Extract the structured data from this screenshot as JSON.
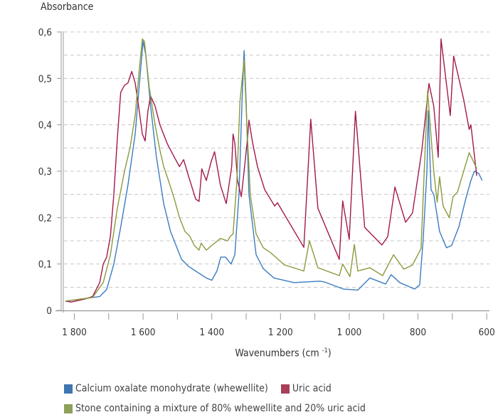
{
  "chart_data": {
    "type": "line",
    "title": "",
    "xlabel": "Wavenumbers (cm",
    "xlabel_sup": "-1",
    "xlabel_close": ")",
    "ylabel": "Absorbance",
    "xlim": [
      1830,
      600
    ],
    "x_reversed": true,
    "ylim": [
      0,
      0.6
    ],
    "grid": "horizontal dashed every 0.05",
    "x_ticks": [
      1800,
      1700,
      1600,
      1500,
      1400,
      1300,
      1200,
      1100,
      1000,
      900,
      800,
      700,
      600
    ],
    "x_tick_labels": [
      "1 800",
      "1 600",
      "1 400",
      "1 200",
      "1 000",
      "800",
      "600"
    ],
    "x_tick_label_values": [
      1800,
      1600,
      1400,
      1200,
      1000,
      800,
      600
    ],
    "y_ticks": [
      0,
      0.1,
      0.2,
      0.3,
      0.4,
      0.5,
      0.6
    ],
    "y_tick_labels": [
      "0",
      "0,1",
      "0,2",
      "0,3",
      "0,4",
      "0,5",
      "0,6"
    ],
    "legend_placement": "bottom",
    "series": [
      {
        "name": "Calcium oxalate monohydrate (whewellite)",
        "color": "#3b7cc0",
        "legend_color": "#3f76b0",
        "x": [
          1826,
          1726,
          1706,
          1685,
          1665,
          1644,
          1623,
          1607,
          1600,
          1592,
          1578,
          1561,
          1540,
          1520,
          1488,
          1468,
          1447,
          1416,
          1400,
          1385,
          1374,
          1360,
          1344,
          1333,
          1321,
          1312,
          1306,
          1300,
          1292,
          1271,
          1250,
          1230,
          1219,
          1161,
          1085,
          1071,
          1017,
          975,
          940,
          894,
          878,
          853,
          810,
          795,
          785,
          774,
          770,
          762,
          754,
          737,
          717,
          702,
          681,
          661,
          646,
          636,
          623,
          613
        ],
        "y": [
          0.02,
          0.03,
          0.045,
          0.1,
          0.18,
          0.27,
          0.38,
          0.52,
          0.58,
          0.55,
          0.44,
          0.33,
          0.23,
          0.17,
          0.11,
          0.095,
          0.085,
          0.07,
          0.065,
          0.085,
          0.115,
          0.115,
          0.1,
          0.12,
          0.25,
          0.45,
          0.56,
          0.45,
          0.25,
          0.12,
          0.09,
          0.077,
          0.07,
          0.06,
          0.063,
          0.061,
          0.046,
          0.044,
          0.07,
          0.057,
          0.077,
          0.06,
          0.046,
          0.055,
          0.15,
          0.3,
          0.43,
          0.26,
          0.25,
          0.17,
          0.135,
          0.14,
          0.18,
          0.24,
          0.28,
          0.3,
          0.295,
          0.28
        ]
      },
      {
        "name": "Uric acid",
        "color": "#a3194b",
        "legend_color": "#a8405a",
        "x": [
          1826,
          1809,
          1768,
          1747,
          1726,
          1716,
          1706,
          1695,
          1685,
          1675,
          1665,
          1654,
          1644,
          1633,
          1623,
          1613,
          1602,
          1594,
          1586,
          1578,
          1565,
          1551,
          1530,
          1509,
          1494,
          1482,
          1468,
          1447,
          1437,
          1429,
          1416,
          1402,
          1392,
          1375,
          1358,
          1342,
          1338,
          1333,
          1325,
          1314,
          1306,
          1296,
          1292,
          1281,
          1267,
          1246,
          1217,
          1209,
          1132,
          1112,
          1091,
          1029,
          1019,
          1000,
          982,
          955,
          905,
          888,
          867,
          836,
          816,
          789,
          768,
          754,
          741,
          733,
          706,
          696,
          667,
          651,
          646,
          629
        ],
        "y": [
          0.02,
          0.018,
          0.025,
          0.03,
          0.06,
          0.1,
          0.115,
          0.16,
          0.25,
          0.37,
          0.47,
          0.485,
          0.49,
          0.515,
          0.49,
          0.44,
          0.38,
          0.365,
          0.43,
          0.462,
          0.44,
          0.4,
          0.36,
          0.33,
          0.31,
          0.325,
          0.29,
          0.24,
          0.235,
          0.305,
          0.28,
          0.32,
          0.342,
          0.27,
          0.23,
          0.31,
          0.38,
          0.36,
          0.28,
          0.245,
          0.3,
          0.37,
          0.41,
          0.36,
          0.31,
          0.26,
          0.225,
          0.232,
          0.136,
          0.412,
          0.22,
          0.11,
          0.236,
          0.153,
          0.429,
          0.179,
          0.141,
          0.159,
          0.266,
          0.19,
          0.21,
          0.343,
          0.489,
          0.44,
          0.33,
          0.585,
          0.42,
          0.548,
          0.455,
          0.39,
          0.4,
          0.29
        ]
      },
      {
        "name": "Stone containing a mixture of 80% whewellite and 20% uric acid",
        "color": "#8a9a3c",
        "legend_color": "#8ea05a",
        "x": [
          1826,
          1747,
          1716,
          1695,
          1675,
          1654,
          1638,
          1623,
          1611,
          1602,
          1596,
          1582,
          1565,
          1551,
          1540,
          1526,
          1509,
          1494,
          1478,
          1464,
          1451,
          1437,
          1431,
          1416,
          1400,
          1375,
          1354,
          1346,
          1338,
          1327,
          1318,
          1306,
          1298,
          1288,
          1271,
          1250,
          1230,
          1188,
          1132,
          1116,
          1091,
          1029,
          1019,
          998,
          985,
          975,
          940,
          903,
          871,
          841,
          816,
          791,
          772,
          754,
          744,
          737,
          727,
          709,
          698,
          685,
          651,
          629
        ],
        "y": [
          0.02,
          0.028,
          0.06,
          0.12,
          0.22,
          0.3,
          0.35,
          0.42,
          0.52,
          0.585,
          0.58,
          0.48,
          0.4,
          0.345,
          0.31,
          0.28,
          0.24,
          0.2,
          0.17,
          0.16,
          0.14,
          0.13,
          0.145,
          0.13,
          0.14,
          0.155,
          0.15,
          0.16,
          0.165,
          0.28,
          0.45,
          0.54,
          0.4,
          0.25,
          0.165,
          0.135,
          0.125,
          0.098,
          0.085,
          0.15,
          0.092,
          0.075,
          0.1,
          0.073,
          0.142,
          0.085,
          0.092,
          0.075,
          0.12,
          0.089,
          0.098,
          0.133,
          0.473,
          0.3,
          0.233,
          0.288,
          0.225,
          0.2,
          0.245,
          0.255,
          0.34,
          0.306
        ]
      }
    ]
  },
  "legend": {
    "items": [
      "Calcium oxalate monohydrate (whewellite)",
      "Uric acid",
      "Stone containing a mixture of 80% whewellite and 20% uric acid"
    ]
  }
}
